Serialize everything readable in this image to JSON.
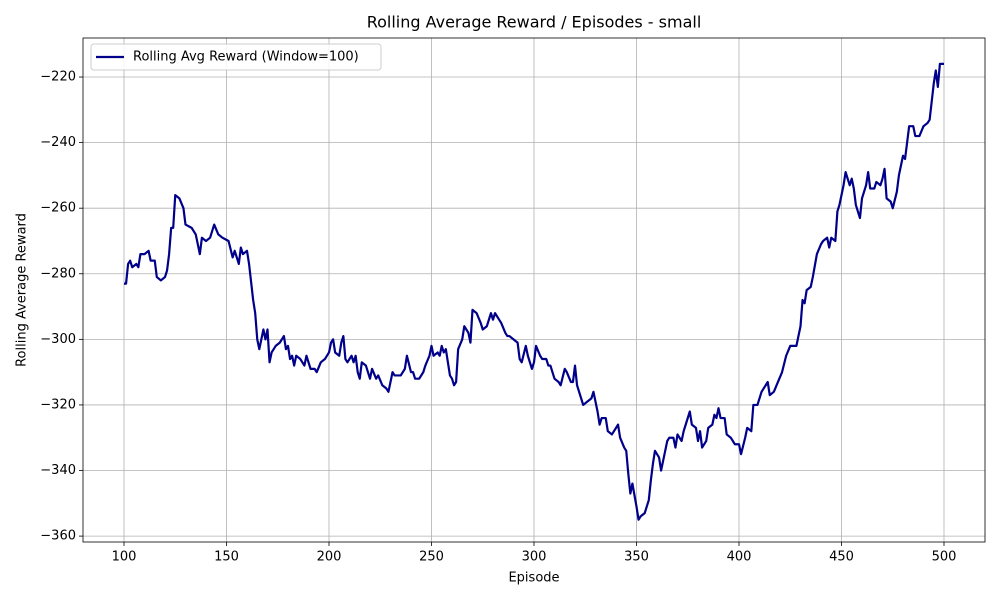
{
  "chart_data": {
    "type": "line",
    "title": "Rolling Average Reward / Episodes - small",
    "xlabel": "Episode",
    "ylabel": "Rolling Average Reward",
    "x": [
      100,
      101,
      102,
      103,
      104,
      106,
      107,
      108,
      110,
      112,
      113,
      115,
      116,
      118,
      120,
      121,
      122,
      123,
      124,
      125,
      127,
      129,
      130,
      133,
      135,
      137,
      138,
      140,
      142,
      144,
      146,
      148,
      151,
      153,
      154,
      156,
      157,
      158,
      160,
      161,
      163,
      164,
      165,
      166,
      168,
      169,
      170,
      171,
      172,
      174,
      176,
      178,
      179,
      180,
      181,
      182,
      183,
      184,
      186,
      188,
      189,
      191,
      193,
      194,
      196,
      198,
      200,
      201,
      202,
      203,
      205,
      206,
      207,
      208,
      209,
      211,
      212,
      213,
      214,
      215,
      216,
      218,
      220,
      221,
      223,
      224,
      226,
      228,
      229,
      231,
      232,
      235,
      237,
      238,
      240,
      241,
      242,
      244,
      246,
      247,
      249,
      250,
      251,
      253,
      254,
      255,
      256,
      257,
      259,
      260,
      261,
      262,
      263,
      265,
      266,
      268,
      269,
      270,
      272,
      274,
      275,
      277,
      279,
      280,
      281,
      283,
      284,
      286,
      287,
      288,
      290,
      292,
      293,
      294,
      296,
      297,
      299,
      300,
      301,
      303,
      304,
      306,
      307,
      308,
      310,
      312,
      313,
      315,
      316,
      318,
      319,
      320,
      321,
      323,
      324,
      326,
      328,
      329,
      331,
      332,
      333,
      335,
      336,
      338,
      339,
      341,
      342,
      344,
      345,
      346,
      347,
      348,
      350,
      351,
      352,
      354,
      356,
      357,
      358,
      359,
      361,
      362,
      363,
      365,
      366,
      368,
      369,
      370,
      372,
      373,
      374,
      376,
      377,
      379,
      380,
      381,
      382,
      384,
      385,
      387,
      388,
      389,
      390,
      391,
      393,
      394,
      396,
      397,
      398,
      400,
      401,
      403,
      404,
      406,
      407,
      409,
      411,
      412,
      414,
      415,
      417,
      419,
      421,
      423,
      425,
      428,
      430,
      431,
      432,
      433,
      435,
      436,
      438,
      440,
      441,
      443,
      444,
      445,
      447,
      448,
      449,
      451,
      452,
      454,
      455,
      456,
      457,
      459,
      460,
      462,
      463,
      464,
      466,
      467,
      469,
      470,
      471,
      472,
      474,
      475,
      477,
      478,
      480,
      481,
      483,
      485,
      486,
      488,
      490,
      492,
      493,
      495,
      496,
      497,
      498,
      500
    ],
    "series": [
      {
        "name": "Rolling Avg Reward (Window=100)",
        "color": "#00008b",
        "values": [
          -283,
          -283,
          -277,
          -276,
          -278,
          -277,
          -278,
          -274,
          -274,
          -273,
          -276,
          -276,
          -281,
          -282,
          -281,
          -279,
          -274,
          -266,
          -266,
          -256,
          -257,
          -260,
          -265,
          -266,
          -268,
          -274,
          -269,
          -270,
          -269,
          -265,
          -268,
          -269,
          -270,
          -275,
          -273,
          -277,
          -272,
          -274,
          -273,
          -277,
          -288,
          -292,
          -300,
          -303,
          -297,
          -300,
          -297,
          -307,
          -304,
          -302,
          -301,
          -299,
          -303,
          -302,
          -306,
          -305,
          -308,
          -305,
          -306,
          -308,
          -305,
          -309,
          -309,
          -310,
          -307,
          -306,
          -304,
          -301,
          -300,
          -304,
          -305,
          -301,
          -299,
          -306,
          -307,
          -305,
          -307,
          -305,
          -310,
          -312,
          -307,
          -308,
          -312,
          -309,
          -312,
          -311,
          -314,
          -315,
          -316,
          -310,
          -311,
          -311,
          -309,
          -305,
          -310,
          -310,
          -312,
          -312,
          -310,
          -308,
          -305,
          -302,
          -305,
          -304,
          -305,
          -302,
          -304,
          -303,
          -311,
          -312,
          -314,
          -313,
          -303,
          -300,
          -296,
          -298,
          -301,
          -291,
          -292,
          -295,
          -297,
          -296,
          -292,
          -294,
          -292,
          -294,
          -295,
          -298,
          -299,
          -299,
          -300,
          -301,
          -306,
          -307,
          -302,
          -305,
          -309,
          -307,
          -302,
          -305,
          -306,
          -306,
          -308,
          -308,
          -312,
          -313,
          -314,
          -309,
          -310,
          -313,
          -313,
          -308,
          -314,
          -318,
          -320,
          -319,
          -318,
          -316,
          -322,
          -326,
          -324,
          -324,
          -328,
          -329,
          -328,
          -326,
          -330,
          -333,
          -334,
          -341,
          -347,
          -344,
          -351,
          -355,
          -354,
          -353,
          -349,
          -343,
          -338,
          -334,
          -336,
          -340,
          -337,
          -331,
          -330,
          -330,
          -333,
          -329,
          -331,
          -328,
          -326,
          -322,
          -326,
          -327,
          -331,
          -328,
          -333,
          -331,
          -327,
          -326,
          -323,
          -324,
          -321,
          -324,
          -324,
          -329,
          -330,
          -331,
          -332,
          -332,
          -335,
          -330,
          -327,
          -328,
          -320,
          -320,
          -316,
          -315,
          -313,
          -317,
          -316,
          -313,
          -310,
          -305,
          -302,
          -302,
          -296,
          -288,
          -289,
          -285,
          -284,
          -281,
          -274,
          -271,
          -270,
          -269,
          -272,
          -269,
          -270,
          -261,
          -259,
          -253,
          -249,
          -253,
          -251,
          -254,
          -259,
          -263,
          -257,
          -253,
          -249,
          -254,
          -254,
          -252,
          -253,
          -251,
          -248,
          -257,
          -258,
          -260,
          -255,
          -250,
          -244,
          -245,
          -235,
          -235,
          -238,
          -238,
          -235,
          -234,
          -233,
          -222,
          -218,
          -223,
          -216,
          -216
        ]
      }
    ],
    "xlim": [
      80,
      520
    ],
    "ylim": [
      -361.8,
      -208.1
    ],
    "xticks": [
      100,
      150,
      200,
      250,
      300,
      350,
      400,
      450,
      500
    ],
    "yticks": [
      {
        "value": -360,
        "label": "−360"
      },
      {
        "value": -340,
        "label": "−340"
      },
      {
        "value": -320,
        "label": "−320"
      },
      {
        "value": -300,
        "label": "−300"
      },
      {
        "value": -280,
        "label": "−280"
      },
      {
        "value": -260,
        "label": "−260"
      },
      {
        "value": -240,
        "label": "−240"
      },
      {
        "value": -220,
        "label": "−220"
      }
    ],
    "grid": true,
    "legend": "upper-left"
  }
}
